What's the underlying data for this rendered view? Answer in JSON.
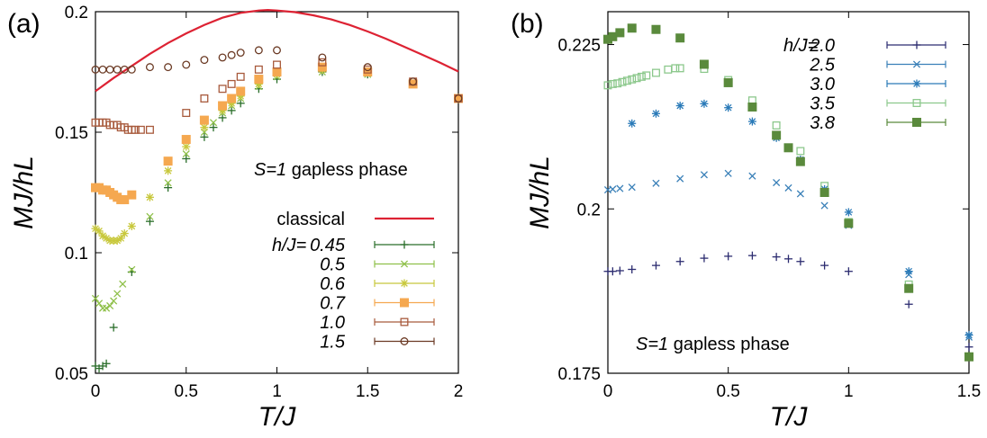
{
  "chart_data": [
    {
      "panel_label": "(a)",
      "type": "scatter",
      "xlabel": "T/J",
      "ylabel": "MJ/hL",
      "xlim": [
        0,
        2
      ],
      "ylim": [
        0.05,
        0.2
      ],
      "x_ticks": [
        0,
        0.5,
        1,
        1.5,
        2
      ],
      "x_tick_labels": [
        "0",
        "0.5",
        "1",
        "1.5",
        "2"
      ],
      "y_ticks": [
        0.05,
        0.1,
        0.15,
        0.2
      ],
      "y_tick_labels": [
        "0.05",
        "0.1",
        "0.15",
        "0.2"
      ],
      "grid": false,
      "annotation": {
        "italic": "S=1",
        "text": " gapless phase"
      },
      "legend": {
        "placement": "right",
        "prefix": "h/J="
      },
      "series": [
        {
          "name": "classical",
          "kind": "line",
          "color": "#dd2233",
          "x": [
            0,
            0.1,
            0.2,
            0.3,
            0.4,
            0.5,
            0.6,
            0.7,
            0.8,
            0.9,
            0.95,
            1.0,
            1.1,
            1.2,
            1.3,
            1.4,
            1.5,
            1.6,
            1.7,
            1.8,
            1.9,
            2.0
          ],
          "y": [
            0.167,
            0.1725,
            0.1775,
            0.1825,
            0.187,
            0.191,
            0.1945,
            0.1975,
            0.1995,
            0.2005,
            0.2007,
            0.2005,
            0.1998,
            0.1985,
            0.1968,
            0.1945,
            0.1918,
            0.1888,
            0.1855,
            0.1822,
            0.1788,
            0.1752
          ]
        },
        {
          "name": "0.45",
          "marker": "plus",
          "color": "#2a6e2a",
          "x": [
            0,
            0.02,
            0.04,
            0.06,
            0.1,
            0.2,
            0.3,
            0.4,
            0.5,
            0.6,
            0.65,
            0.7,
            0.75,
            0.8,
            0.9,
            1.0,
            1.25,
            1.5,
            1.75,
            2.0
          ],
          "y": [
            0.053,
            0.052,
            0.053,
            0.054,
            0.069,
            0.092,
            0.113,
            0.127,
            0.139,
            0.148,
            0.152,
            0.156,
            0.159,
            0.162,
            0.168,
            0.172,
            0.175,
            0.174,
            0.17,
            0.164
          ]
        },
        {
          "name": "0.5",
          "marker": "x",
          "color": "#8fc04a",
          "x": [
            0,
            0.02,
            0.04,
            0.06,
            0.08,
            0.1,
            0.12,
            0.15,
            0.2,
            0.3,
            0.4,
            0.5,
            0.6,
            0.65,
            0.7,
            0.75,
            0.8,
            0.9,
            1.0,
            1.25,
            1.5,
            1.75,
            2.0
          ],
          "y": [
            0.081,
            0.079,
            0.077,
            0.077,
            0.078,
            0.08,
            0.083,
            0.087,
            0.093,
            0.115,
            0.129,
            0.141,
            0.15,
            0.154,
            0.158,
            0.161,
            0.164,
            0.169,
            0.173,
            0.175,
            0.174,
            0.17,
            0.164
          ]
        },
        {
          "name": "0.6",
          "marker": "star",
          "color": "#c8c83c",
          "x": [
            0,
            0.02,
            0.04,
            0.06,
            0.08,
            0.1,
            0.12,
            0.14,
            0.16,
            0.2,
            0.3,
            0.4,
            0.5,
            0.6,
            0.7,
            0.75,
            0.8,
            0.9,
            1.0,
            1.25,
            1.5,
            1.75,
            2.0
          ],
          "y": [
            0.11,
            0.109,
            0.107,
            0.106,
            0.105,
            0.105,
            0.105,
            0.106,
            0.108,
            0.111,
            0.123,
            0.134,
            0.144,
            0.152,
            0.159,
            0.162,
            0.165,
            0.17,
            0.174,
            0.176,
            0.175,
            0.17,
            0.164
          ]
        },
        {
          "name": "0.7",
          "marker": "filled-square",
          "color": "#f5a850",
          "x": [
            0,
            0.02,
            0.04,
            0.06,
            0.08,
            0.1,
            0.12,
            0.14,
            0.16,
            0.2,
            0.4,
            0.5,
            0.6,
            0.7,
            0.75,
            0.8,
            0.9,
            1.0,
            1.25,
            1.5,
            1.75,
            2.0
          ],
          "y": [
            0.127,
            0.127,
            0.126,
            0.126,
            0.125,
            0.124,
            0.123,
            0.122,
            0.122,
            0.124,
            0.138,
            0.147,
            0.155,
            0.161,
            0.164,
            0.167,
            0.172,
            0.175,
            0.177,
            0.175,
            0.17,
            0.164
          ]
        },
        {
          "name": "1.0",
          "marker": "open-square",
          "color": "#a85a3c",
          "x": [
            0,
            0.02,
            0.04,
            0.06,
            0.08,
            0.1,
            0.12,
            0.14,
            0.16,
            0.18,
            0.2,
            0.22,
            0.25,
            0.3,
            0.5,
            0.6,
            0.7,
            0.75,
            0.8,
            0.9,
            1.0,
            1.25,
            1.5,
            1.75,
            2.0
          ],
          "y": [
            0.154,
            0.154,
            0.154,
            0.154,
            0.153,
            0.153,
            0.153,
            0.152,
            0.152,
            0.151,
            0.151,
            0.151,
            0.151,
            0.151,
            0.158,
            0.164,
            0.168,
            0.17,
            0.173,
            0.176,
            0.178,
            0.179,
            0.176,
            0.171,
            0.164
          ]
        },
        {
          "name": "1.5",
          "marker": "circle",
          "color": "#6b3a24",
          "x": [
            0,
            0.04,
            0.08,
            0.12,
            0.16,
            0.2,
            0.3,
            0.4,
            0.5,
            0.6,
            0.7,
            0.75,
            0.8,
            0.9,
            1.0,
            1.25,
            1.5,
            1.75,
            2.0
          ],
          "y": [
            0.176,
            0.176,
            0.176,
            0.176,
            0.176,
            0.176,
            0.177,
            0.177,
            0.178,
            0.18,
            0.181,
            0.182,
            0.183,
            0.184,
            0.184,
            0.181,
            0.177,
            0.171,
            0.164
          ]
        }
      ]
    },
    {
      "panel_label": "(b)",
      "type": "scatter",
      "xlabel": "T/J",
      "ylabel": "MJ/hL",
      "xlim": [
        0,
        1.5
      ],
      "ylim": [
        0.175,
        0.23
      ],
      "x_ticks": [
        0,
        0.5,
        1,
        1.5
      ],
      "x_tick_labels": [
        "0",
        "0.5",
        "1",
        "1.5"
      ],
      "y_ticks": [
        0.175,
        0.2,
        0.225
      ],
      "y_tick_labels": [
        "0.175",
        "0.2",
        "0.225"
      ],
      "grid": false,
      "annotation": {
        "italic": "S=1",
        "text": " gapless phase"
      },
      "legend": {
        "placement": "top-right",
        "prefix": "h/J="
      },
      "series": [
        {
          "name": "2.0",
          "marker": "plus",
          "color": "#2c2c70",
          "x": [
            0,
            0.02,
            0.05,
            0.1,
            0.2,
            0.3,
            0.4,
            0.5,
            0.6,
            0.7,
            0.75,
            0.8,
            0.9,
            1.0,
            1.25,
            1.5
          ],
          "y": [
            0.1905,
            0.1905,
            0.1906,
            0.1908,
            0.1914,
            0.192,
            0.1925,
            0.1928,
            0.1929,
            0.1927,
            0.1924,
            0.192,
            0.1914,
            0.1905,
            0.1855,
            0.179
          ]
        },
        {
          "name": "2.5",
          "marker": "x",
          "color": "#3a80b8",
          "x": [
            0,
            0.02,
            0.05,
            0.1,
            0.2,
            0.3,
            0.4,
            0.5,
            0.6,
            0.7,
            0.75,
            0.8,
            0.9,
            1.0,
            1.25,
            1.5
          ],
          "y": [
            0.2029,
            0.203,
            0.2031,
            0.2033,
            0.2039,
            0.2046,
            0.2052,
            0.2054,
            0.205,
            0.204,
            0.2032,
            0.2023,
            0.2005,
            0.1975,
            0.19,
            0.1805
          ]
        },
        {
          "name": "3.0",
          "marker": "star",
          "color": "#2a7ab8",
          "x": [
            0.1,
            0.2,
            0.3,
            0.4,
            0.5,
            0.6,
            0.7,
            0.8,
            0.9,
            1.0,
            1.25,
            1.5
          ],
          "y": [
            0.213,
            0.2145,
            0.2157,
            0.216,
            0.2154,
            0.2133,
            0.2108,
            0.2075,
            0.203,
            0.1995,
            0.1905,
            0.1808
          ]
        },
        {
          "name": "3.5",
          "marker": "open-square",
          "color": "#8cc88c",
          "x": [
            0,
            0.02,
            0.04,
            0.06,
            0.08,
            0.1,
            0.12,
            0.14,
            0.16,
            0.2,
            0.25,
            0.28,
            0.3,
            0.4,
            0.5,
            0.6,
            0.7,
            0.8,
            0.9,
            1.0,
            1.25,
            1.5
          ],
          "y": [
            0.2188,
            0.219,
            0.2191,
            0.2193,
            0.2195,
            0.2197,
            0.2199,
            0.2201,
            0.2203,
            0.2207,
            0.2212,
            0.2214,
            0.2214,
            0.2213,
            0.2196,
            0.2165,
            0.2127,
            0.2088,
            0.2035,
            0.198,
            0.1885,
            0.1775
          ]
        },
        {
          "name": "3.8",
          "marker": "filled-square",
          "color": "#5a8a3c",
          "x": [
            0,
            0.02,
            0.05,
            0.1,
            0.2,
            0.3,
            0.4,
            0.5,
            0.6,
            0.7,
            0.75,
            0.8,
            0.9,
            1.0,
            1.25,
            1.5
          ],
          "y": [
            0.2258,
            0.2262,
            0.2268,
            0.2275,
            0.2273,
            0.226,
            0.222,
            0.2192,
            0.2155,
            0.2112,
            0.2093,
            0.2072,
            0.2025,
            0.1978,
            0.1879,
            0.1775
          ]
        }
      ]
    }
  ]
}
